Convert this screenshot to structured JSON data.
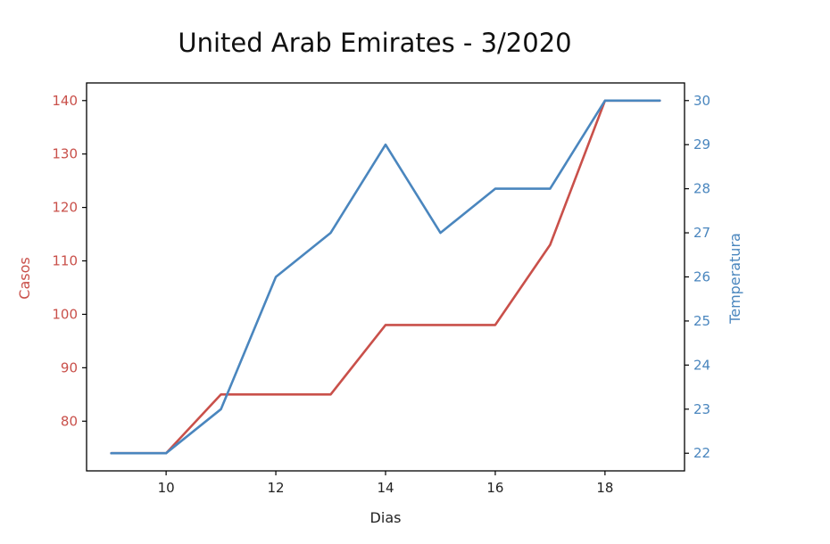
{
  "chart_data": {
    "type": "line",
    "title": "United Arab Emirates - 3/2020",
    "xlabel": "Dias",
    "ylabel_left": "Casos",
    "ylabel_right": "Temperatura",
    "x": [
      9,
      10,
      11,
      12,
      13,
      14,
      15,
      16,
      17,
      18,
      19
    ],
    "xticks": [
      10,
      12,
      14,
      16,
      18
    ],
    "xlim": [
      8.55,
      19.45
    ],
    "series": [
      {
        "axis": "left",
        "color": "#c9504a",
        "values": [
          74,
          74,
          85,
          85,
          85,
          98,
          98,
          98,
          113,
          140,
          140
        ]
      },
      {
        "axis": "right",
        "color": "#4a86be",
        "values": [
          22,
          22,
          23,
          26,
          27,
          29,
          27,
          28,
          28,
          30,
          30
        ]
      }
    ],
    "yticks_left": [
      80,
      90,
      100,
      110,
      120,
      130,
      140
    ],
    "ylim_left": [
      70.7,
      143.3
    ],
    "yticks_right": [
      22,
      23,
      24,
      25,
      26,
      27,
      28,
      29,
      30
    ],
    "ylim_right": [
      21.6,
      30.4
    ],
    "grid": false,
    "legend": "none"
  }
}
